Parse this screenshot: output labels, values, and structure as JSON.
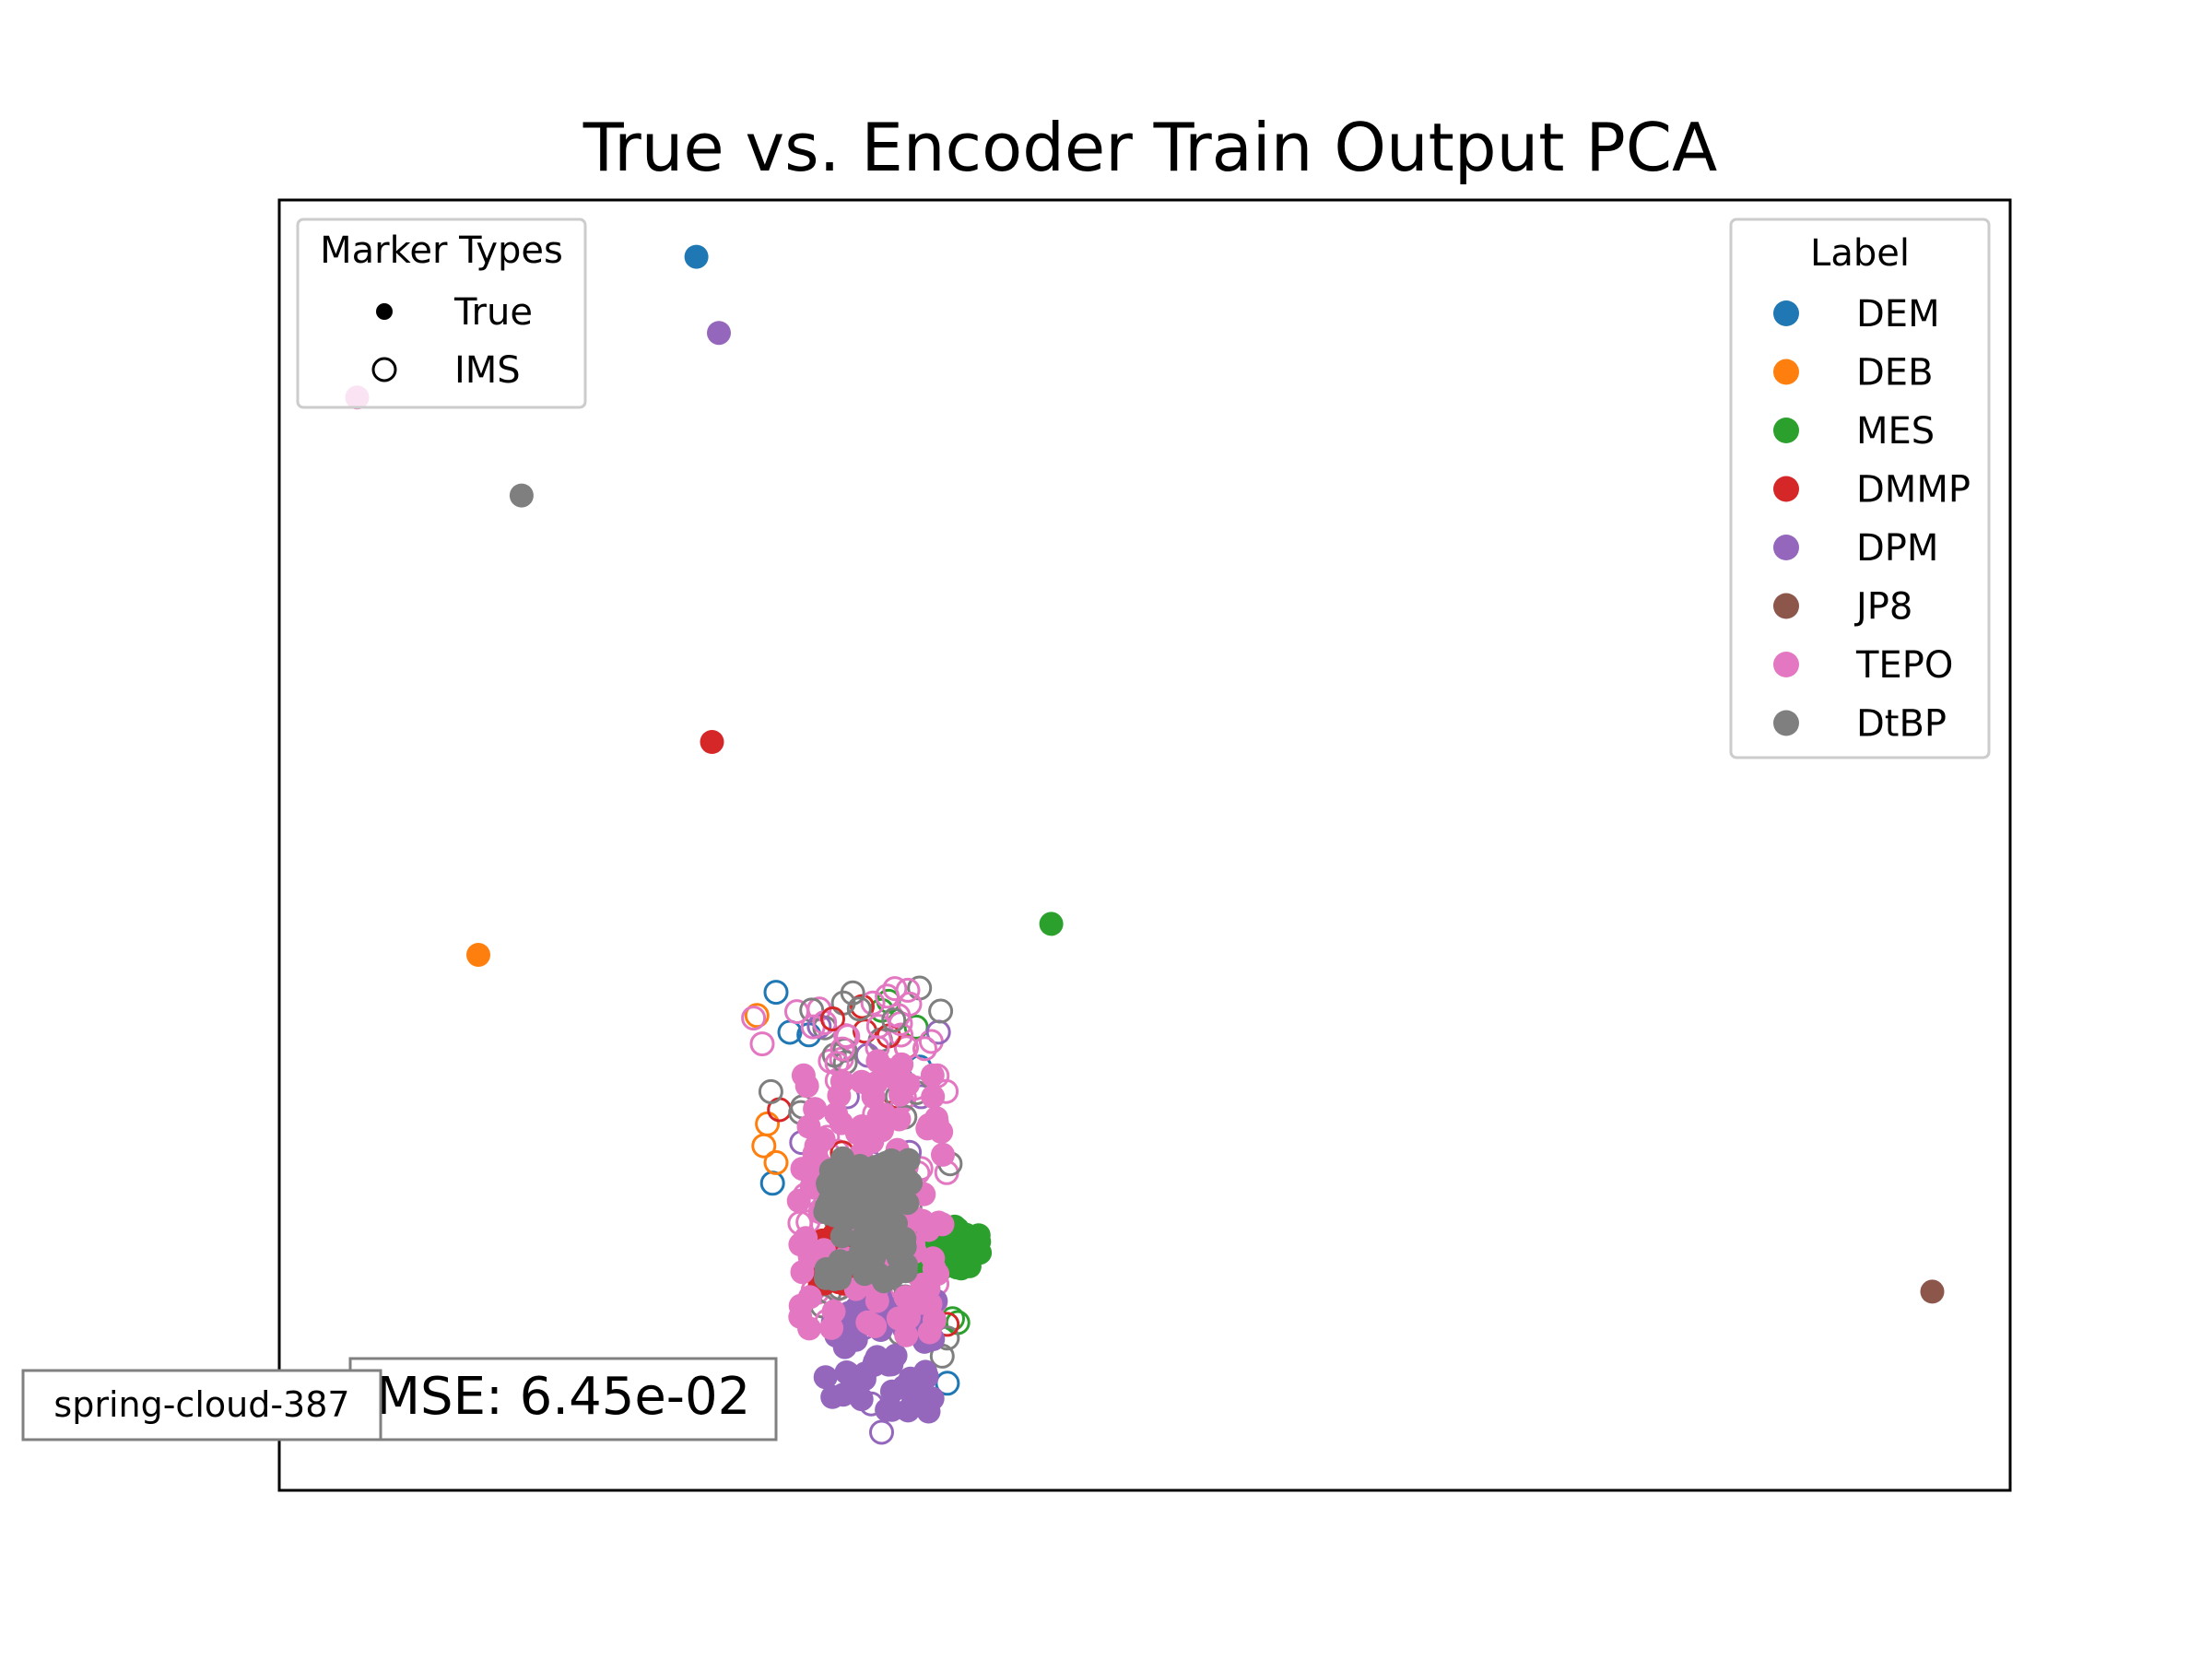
{
  "chart_data": {
    "type": "scatter",
    "title": "True vs. Encoder Train Output PCA",
    "xlabel": "",
    "ylabel": "",
    "ticks_visible": false,
    "grid": false,
    "xlim": [
      0,
      100
    ],
    "ylim": [
      0,
      100
    ],
    "marker_legend": {
      "title": "Marker Types",
      "placement": "upper-left",
      "entries": [
        {
          "label": "True",
          "style": "filled"
        },
        {
          "label": "IMS",
          "style": "hollow"
        }
      ]
    },
    "label_legend": {
      "title": "Label",
      "placement": "upper-right",
      "entries": [
        {
          "label": "DEM",
          "color": "#1f77b4"
        },
        {
          "label": "DEB",
          "color": "#ff7f0e"
        },
        {
          "label": "MES",
          "color": "#2ca02c"
        },
        {
          "label": "DMMP",
          "color": "#d62728"
        },
        {
          "label": "DPM",
          "color": "#9467bd"
        },
        {
          "label": "JP8",
          "color": "#8c564b"
        },
        {
          "label": "TEPO",
          "color": "#e377c2"
        },
        {
          "label": "DtBP",
          "color": "#7f7f7f"
        }
      ]
    },
    "annotations": {
      "mse": "MSE: 6.45e-02",
      "run_name": "spring-cloud-387"
    },
    "true_points": [
      {
        "label": "DEM",
        "x": 24.1,
        "y": 95.6
      },
      {
        "label": "DPM",
        "x": 25.4,
        "y": 89.7
      },
      {
        "label": "TEPO",
        "x": 4.5,
        "y": 84.7
      },
      {
        "label": "DtBP",
        "x": 14.0,
        "y": 77.1
      },
      {
        "label": "DMMP",
        "x": 25.0,
        "y": 58.0
      },
      {
        "label": "MES",
        "x": 44.6,
        "y": 43.9
      },
      {
        "label": "DEB",
        "x": 11.5,
        "y": 41.5
      },
      {
        "label": "JP8",
        "x": 95.5,
        "y": 15.4
      }
    ],
    "ims_cluster": {
      "description_free": true,
      "x_range": [
        27,
        39
      ],
      "y_range": [
        4.5,
        39
      ],
      "points": [
        {
          "label": "DEM",
          "x": 28.7,
          "y": 38.6
        },
        {
          "label": "DEM",
          "x": 29.5,
          "y": 35.5
        },
        {
          "label": "DEM",
          "x": 37.0,
          "y": 32.8
        },
        {
          "label": "DEM",
          "x": 28.5,
          "y": 23.8
        },
        {
          "label": "DEM",
          "x": 38.6,
          "y": 8.3
        },
        {
          "label": "DEM",
          "x": 30.6,
          "y": 35.3
        },
        {
          "label": "DEB",
          "x": 28.2,
          "y": 28.4
        },
        {
          "label": "DEB",
          "x": 28.0,
          "y": 26.7
        },
        {
          "label": "DEB",
          "x": 28.7,
          "y": 25.4
        },
        {
          "label": "DEB",
          "x": 27.6,
          "y": 36.8
        },
        {
          "label": "MES",
          "x": 34.8,
          "y": 37.2
        },
        {
          "label": "MES",
          "x": 35.2,
          "y": 37.9
        },
        {
          "label": "MES",
          "x": 36.8,
          "y": 35.9
        },
        {
          "label": "MES",
          "x": 38.9,
          "y": 13.3
        },
        {
          "label": "MES",
          "x": 39.2,
          "y": 13.0
        },
        {
          "label": "DMMP",
          "x": 34.2,
          "y": 31.3
        },
        {
          "label": "DMMP",
          "x": 28.9,
          "y": 29.5
        },
        {
          "label": "DPM",
          "x": 34.8,
          "y": 4.5
        },
        {
          "label": "DPM",
          "x": 34.2,
          "y": 6.7
        },
        {
          "label": "DtBP",
          "x": 28.4,
          "y": 30.9
        },
        {
          "label": "DtBP",
          "x": 38.6,
          "y": 11.8
        },
        {
          "label": "DtBP",
          "x": 38.3,
          "y": 10.4
        },
        {
          "label": "TEPO",
          "x": 27.4,
          "y": 36.6
        },
        {
          "label": "TEPO",
          "x": 27.9,
          "y": 34.6
        },
        {
          "label": "TEPO",
          "x": 31.2,
          "y": 37.3
        },
        {
          "label": "TEPO",
          "x": 29.9,
          "y": 37.1
        },
        {
          "label": "TEPO",
          "x": 37.9,
          "y": 14.6
        },
        {
          "label": "TEPO",
          "x": 38.0,
          "y": 16.0
        }
      ]
    },
    "true_cluster": {
      "groups": [
        {
          "label": "MES",
          "x_range": [
            36.5,
            40.5
          ],
          "y_range": [
            17,
            20.5
          ]
        },
        {
          "label": "DMMP",
          "x_range": [
            31,
            34
          ],
          "y_range": [
            16,
            20
          ]
        },
        {
          "label": "DPM",
          "x_range": [
            31.5,
            38
          ],
          "y_range": [
            6,
            15
          ]
        },
        {
          "label": "TEPO",
          "x_range": [
            30,
            38.5
          ],
          "y_range": [
            12,
            34
          ]
        },
        {
          "label": "DtBP",
          "x_range": [
            31.5,
            36.5
          ],
          "y_range": [
            16,
            26
          ]
        }
      ]
    }
  }
}
